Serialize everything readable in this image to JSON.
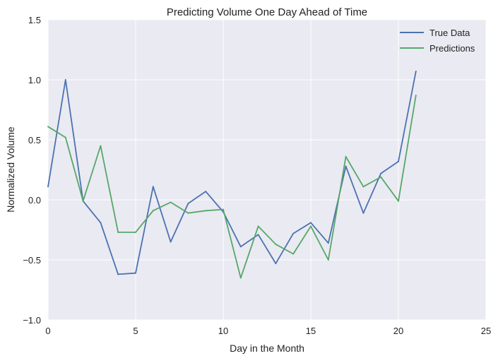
{
  "chart_data": {
    "type": "line",
    "title": "Predicting Volume One Day Ahead of Time",
    "xlabel": "Day in the Month",
    "ylabel": "Normalized Volume",
    "xlim": [
      0,
      25
    ],
    "ylim": [
      -1.0,
      1.5
    ],
    "xticks": [
      0,
      5,
      10,
      15,
      20,
      25
    ],
    "yticks": [
      -1.0,
      -0.5,
      0.0,
      0.5,
      1.0,
      1.5
    ],
    "xtick_labels": [
      "0",
      "5",
      "10",
      "15",
      "20",
      "25"
    ],
    "ytick_labels": [
      "−1.0",
      "−0.5",
      "0.0",
      "0.5",
      "1.0",
      "1.5"
    ],
    "grid": true,
    "legend_position": "top-right",
    "x": [
      0,
      1,
      2,
      3,
      4,
      5,
      6,
      7,
      8,
      9,
      10,
      11,
      12,
      13,
      14,
      15,
      16,
      17,
      18,
      19,
      20,
      21
    ],
    "series": [
      {
        "name": "True Data",
        "color": "#4c72b0",
        "values": [
          0.11,
          1.0,
          -0.01,
          -0.19,
          -0.62,
          -0.61,
          0.11,
          -0.35,
          -0.03,
          0.07,
          -0.1,
          -0.39,
          -0.29,
          -0.53,
          -0.28,
          -0.19,
          -0.36,
          0.28,
          -0.11,
          0.22,
          0.32,
          1.07
        ]
      },
      {
        "name": "Predictions",
        "color": "#55a868",
        "values": [
          0.61,
          0.52,
          -0.01,
          0.45,
          -0.27,
          -0.27,
          -0.09,
          -0.02,
          -0.11,
          -0.09,
          -0.08,
          -0.65,
          -0.22,
          -0.37,
          -0.45,
          -0.22,
          -0.5,
          0.36,
          0.11,
          0.19,
          -0.01,
          0.87
        ]
      }
    ]
  }
}
